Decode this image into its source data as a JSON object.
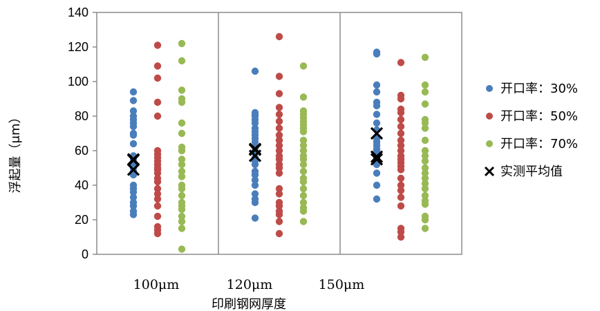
{
  "chart_data": {
    "type": "scatter",
    "title": "",
    "xlabel": "印刷钢网厚度",
    "ylabel": "浮起量（μm）",
    "ylim": [
      0,
      140
    ],
    "yticks": [
      0,
      20,
      40,
      60,
      80,
      100,
      120,
      140
    ],
    "categories": [
      "100μm",
      "120μm",
      "150μm"
    ],
    "grid": "vertical separators between categories",
    "legend_position": "right",
    "series": [
      {
        "name": "开口率：30%",
        "color": "#4a7ebb",
        "marker": "circle",
        "values": [
          [
            94,
            89,
            83,
            80,
            78,
            76,
            74,
            70,
            69,
            64,
            57,
            55,
            52,
            50,
            48,
            46,
            40,
            38,
            36,
            33,
            30,
            28,
            25,
            23
          ],
          [
            106,
            82,
            81,
            80,
            78,
            76,
            73,
            71,
            69,
            67,
            65,
            62,
            60,
            59,
            56,
            54,
            52,
            48,
            46,
            43,
            40,
            35,
            32,
            30,
            21
          ],
          [
            117,
            116,
            98,
            94,
            88,
            86,
            81,
            76,
            72,
            67,
            65,
            63,
            61,
            60,
            58,
            56,
            54,
            52,
            47,
            40,
            32
          ]
        ]
      },
      {
        "name": "开口率：50%",
        "color": "#be4b48",
        "marker": "circle",
        "values": [
          [
            121,
            109,
            102,
            88,
            80,
            60,
            58,
            56,
            54,
            52,
            50,
            49,
            47,
            44,
            42,
            38,
            35,
            32,
            28,
            22,
            16,
            14,
            12
          ],
          [
            126,
            103,
            93,
            85,
            81,
            77,
            73,
            69,
            66,
            63,
            60,
            57,
            55,
            52,
            50,
            47,
            38,
            35,
            30,
            28,
            25,
            23,
            19,
            12
          ],
          [
            111,
            92,
            90,
            84,
            82,
            78,
            74,
            70,
            66,
            63,
            60,
            57,
            55,
            53,
            51,
            49,
            44,
            40,
            37,
            33,
            28,
            15,
            13,
            10
          ]
        ]
      },
      {
        "name": "开口率：70%",
        "color": "#98b954",
        "marker": "circle",
        "values": [
          [
            122,
            112,
            95,
            90,
            88,
            76,
            70,
            62,
            60,
            55,
            52,
            48,
            45,
            40,
            38,
            34,
            30,
            28,
            26,
            22,
            19,
            15,
            3
          ],
          [
            109,
            91,
            83,
            81,
            79,
            77,
            75,
            73,
            71,
            66,
            63,
            60,
            57,
            55,
            52,
            48,
            44,
            42,
            38,
            34,
            30,
            27,
            25,
            19
          ],
          [
            114,
            98,
            94,
            87,
            78,
            76,
            73,
            66,
            60,
            57,
            54,
            50,
            47,
            44,
            41,
            38,
            34,
            31,
            29,
            22,
            20,
            15
          ]
        ]
      },
      {
        "name": "实测平均值",
        "color": "#000000",
        "marker": "x",
        "values": [
          [
            54.5,
            49,
            55
          ],
          [
            60.5,
            57,
            61
          ],
          [
            70,
            56.5,
            55
          ]
        ]
      }
    ]
  }
}
